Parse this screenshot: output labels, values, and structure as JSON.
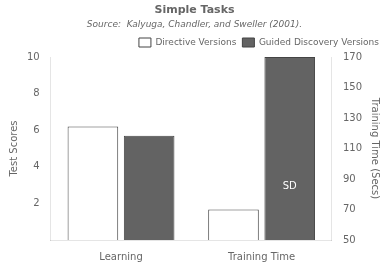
{
  "chart_data": {
    "type": "bar",
    "title": "Simple Tasks",
    "subtitle": "Source:  Kalyuga, Chandler, and Sweller (2001).",
    "categories": [
      "Learning",
      "Training Time"
    ],
    "series": [
      {
        "name": "Directive Versions",
        "color": "#ffffff",
        "values": [
          6.2,
          null
        ]
      },
      {
        "name": "Guided Discovery Versions",
        "color": "#636363",
        "values": [
          5.7,
          null
        ]
      },
      {
        "name": "Directive Versions",
        "color": "#ffffff",
        "axis": "y2",
        "values": [
          null,
          70.0
        ]
      },
      {
        "name": "Guided Discovery Versions",
        "color": "#636363",
        "axis": "y2",
        "values": [
          null,
          170.0
        ]
      }
    ],
    "ylabel": "Test Scores",
    "y2label": "Training Time (Secs)",
    "ylim": [
      0,
      10
    ],
    "yticks": [
      2,
      4,
      6,
      8,
      10
    ],
    "y2lim": [
      50,
      170
    ],
    "y2ticks": [
      50,
      70,
      90,
      110,
      130,
      150,
      170
    ],
    "annotations": [
      {
        "text": "SD",
        "category": "Training Time",
        "series": "Guided Discovery Versions"
      }
    ],
    "legend": "upper right",
    "grid": false
  }
}
